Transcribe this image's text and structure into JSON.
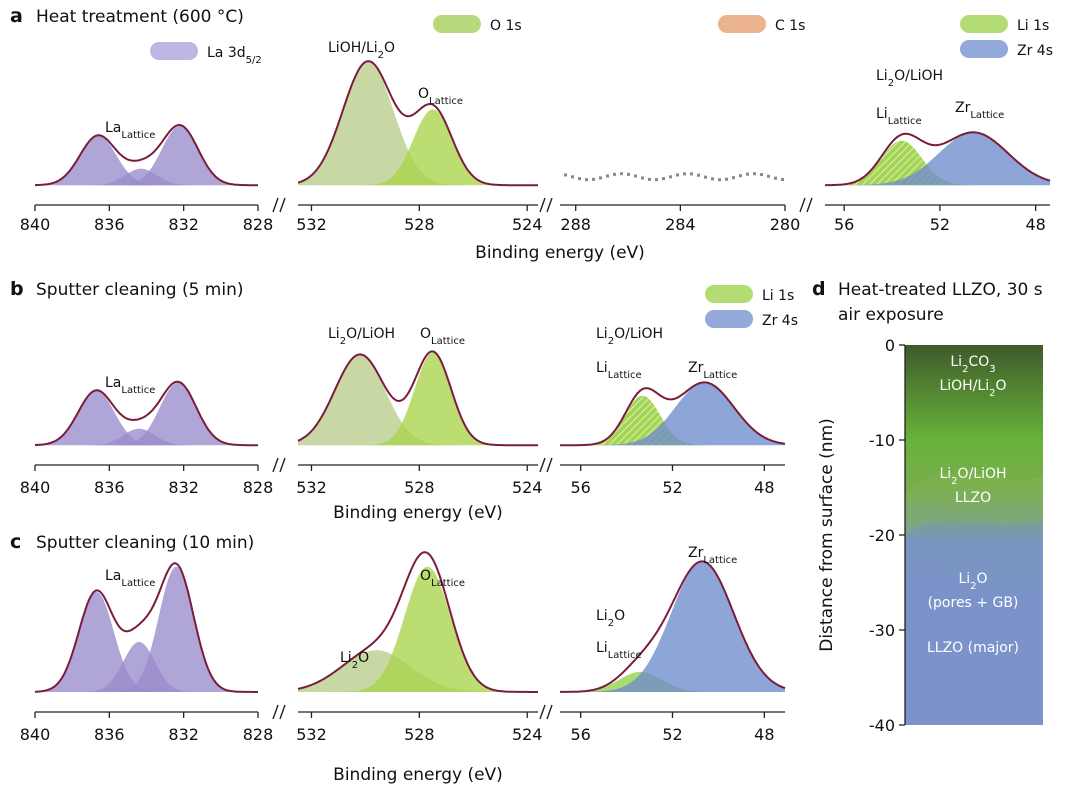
{
  "panels": [
    {
      "label": "a",
      "title": "Heat treatment (600 °C)",
      "xlabel": "Binding energy (eV)",
      "plots": [
        {
          "xlim": [
            840,
            828
          ],
          "xticks": [
            840,
            836,
            832,
            828
          ],
          "peaks": [
            {
              "center": 836.6,
              "height": 0.3,
              "fwhm": 2.3,
              "color": "#9a8ccc"
            },
            {
              "center": 834.3,
              "height": 0.1,
              "fwhm": 2.0,
              "color": "#9a8ccc"
            },
            {
              "center": 832.2,
              "height": 0.36,
              "fwhm": 2.3,
              "color": "#9a8ccc"
            }
          ],
          "labels": [
            [
              "La",
              "Lattice"
            ]
          ],
          "legend": [
            {
              "text": [
                "La 3d",
                "5/2"
              ],
              "color": "#a99ed8"
            }
          ]
        },
        {
          "xlim": [
            532.5,
            523.6
          ],
          "xticks": [
            532,
            528,
            524
          ],
          "peaks": [
            {
              "center": 529.9,
              "height": 0.75,
              "fwhm": 2.2,
              "color": "#b7cd8c"
            },
            {
              "center": 527.5,
              "height": 0.46,
              "fwhm": 1.7,
              "color": "#a8d44a"
            }
          ],
          "labels": [
            [
              "LiOH/Li",
              "2",
              "O"
            ],
            [
              "O",
              "Lattice"
            ]
          ],
          "legend": [
            {
              "text": [
                "O 1s"
              ],
              "color": "#9fcc4f"
            }
          ]
        },
        {
          "xlim": [
            288.6,
            280
          ],
          "xticks": [
            288,
            284,
            280
          ],
          "peaks": [],
          "labels": [],
          "legend": [
            {
              "text": [
                "C 1s"
              ],
              "color": "#e59a6a"
            }
          ]
        },
        {
          "xlim": [
            56.8,
            47.4
          ],
          "xticks": [
            56,
            52,
            48
          ],
          "peaks": [
            {
              "center": 53.6,
              "height": 0.27,
              "fwhm": 2.0,
              "color": "#9bd045",
              "hatch": true
            },
            {
              "center": 50.6,
              "height": 0.32,
              "fwhm": 3.4,
              "color": "#6e8ccc"
            }
          ],
          "labels": [
            [
              "Li",
              "2",
              "O/LiOH"
            ],
            [
              "Li",
              "Lattice"
            ],
            [
              "Zr",
              "Lattice"
            ]
          ],
          "legend": [
            {
              "text": [
                "Li 1s"
              ],
              "color": "#9bd045"
            },
            {
              "text": [
                "Zr 4s"
              ],
              "color": "#6e8ccc"
            }
          ]
        }
      ]
    },
    {
      "label": "b",
      "title": "Sputter cleaning (5 min)",
      "xlabel": "Binding energy (eV)",
      "plots": [
        {
          "xlim": [
            840,
            828
          ],
          "xticks": [
            840,
            836,
            832,
            828
          ],
          "peaks": [
            {
              "center": 836.7,
              "height": 0.33,
              "fwhm": 2.3,
              "color": "#9a8ccc"
            },
            {
              "center": 834.4,
              "height": 0.1,
              "fwhm": 2.0,
              "color": "#9a8ccc"
            },
            {
              "center": 832.3,
              "height": 0.38,
              "fwhm": 2.3,
              "color": "#9a8ccc"
            }
          ],
          "labels": [
            [
              "La",
              "Lattice"
            ]
          ],
          "legend": []
        },
        {
          "xlim": [
            532.5,
            523.6
          ],
          "xticks": [
            532,
            528,
            524
          ],
          "peaks": [
            {
              "center": 530.2,
              "height": 0.55,
              "fwhm": 2.2,
              "color": "#b7cd8c"
            },
            {
              "center": 527.5,
              "height": 0.56,
              "fwhm": 1.6,
              "color": "#a8d44a"
            }
          ],
          "labels": [
            [
              "Li",
              "2",
              "O/LiOH"
            ],
            [
              "O",
              "Lattice"
            ]
          ],
          "legend": []
        },
        {
          "xlim": [
            56.9,
            47.1
          ],
          "xticks": [
            56,
            52,
            48
          ],
          "peaks": [
            {
              "center": 53.3,
              "height": 0.3,
              "fwhm": 1.8,
              "color": "#9bd045",
              "hatch": true
            },
            {
              "center": 50.6,
              "height": 0.38,
              "fwhm": 3.0,
              "color": "#6e8ccc"
            }
          ],
          "labels": [
            [
              "Li",
              "2",
              "O/LiOH"
            ],
            [
              "Li",
              "Lattice"
            ],
            [
              "Zr",
              "Lattice"
            ]
          ],
          "legend": [
            {
              "text": [
                "Li 1s"
              ],
              "color": "#9bd045"
            },
            {
              "text": [
                "Zr 4s"
              ],
              "color": "#6e8ccc"
            }
          ]
        }
      ]
    },
    {
      "label": "c",
      "title": "Sputter cleaning (10 min)",
      "xlabel": "Binding energy (eV)",
      "plots": [
        {
          "xlim": [
            840,
            828
          ],
          "xticks": [
            840,
            836,
            832,
            828
          ],
          "peaks": [
            {
              "center": 836.7,
              "height": 0.6,
              "fwhm": 2.2,
              "color": "#9a8ccc"
            },
            {
              "center": 834.4,
              "height": 0.3,
              "fwhm": 2.0,
              "color": "#9a8ccc"
            },
            {
              "center": 832.4,
              "height": 0.75,
              "fwhm": 2.2,
              "color": "#9a8ccc"
            }
          ],
          "labels": [
            [
              "La",
              "Lattice"
            ]
          ],
          "legend": []
        },
        {
          "xlim": [
            532.5,
            523.6
          ],
          "xticks": [
            532,
            528,
            524
          ],
          "peaks": [
            {
              "center": 529.6,
              "height": 0.25,
              "fwhm": 3.0,
              "color": "#b7cd8c"
            },
            {
              "center": 527.7,
              "height": 0.75,
              "fwhm": 2.0,
              "color": "#a8d44a"
            }
          ],
          "labels": [
            [
              "Li",
              "2",
              "O"
            ],
            [
              "O",
              "Lattice"
            ]
          ],
          "legend": []
        },
        {
          "xlim": [
            56.9,
            47.1
          ],
          "xticks": [
            56,
            52,
            48
          ],
          "peaks": [
            {
              "center": 53.4,
              "height": 0.12,
              "fwhm": 2.2,
              "color": "#8fd24a"
            },
            {
              "center": 50.7,
              "height": 0.78,
              "fwhm": 3.2,
              "color": "#6e8ccc"
            }
          ],
          "labels": [
            [
              "Zr",
              "Lattice"
            ],
            [
              "Li",
              "2",
              "O"
            ],
            [
              "Li",
              "Lattice"
            ]
          ],
          "legend": []
        }
      ]
    }
  ],
  "panel_d": {
    "label": "d",
    "title": [
      "Heat-treated LLZO, 30 s",
      "air exposure"
    ],
    "ylabel": "Distance from surface (nm)",
    "ylim": [
      0,
      -40
    ],
    "yticks": [
      0,
      -10,
      -20,
      -30,
      -40
    ],
    "layers": [
      [
        "Li",
        "2",
        "CO",
        "3"
      ],
      [
        "LiOH/Li",
        "2",
        "O"
      ],
      [
        "Li",
        "2",
        "O/LiOH"
      ],
      [
        "LLZO"
      ],
      [
        "Li",
        "2",
        "O"
      ],
      [
        "(pores + GB)"
      ],
      [
        "LLZO (major)"
      ]
    ]
  }
}
